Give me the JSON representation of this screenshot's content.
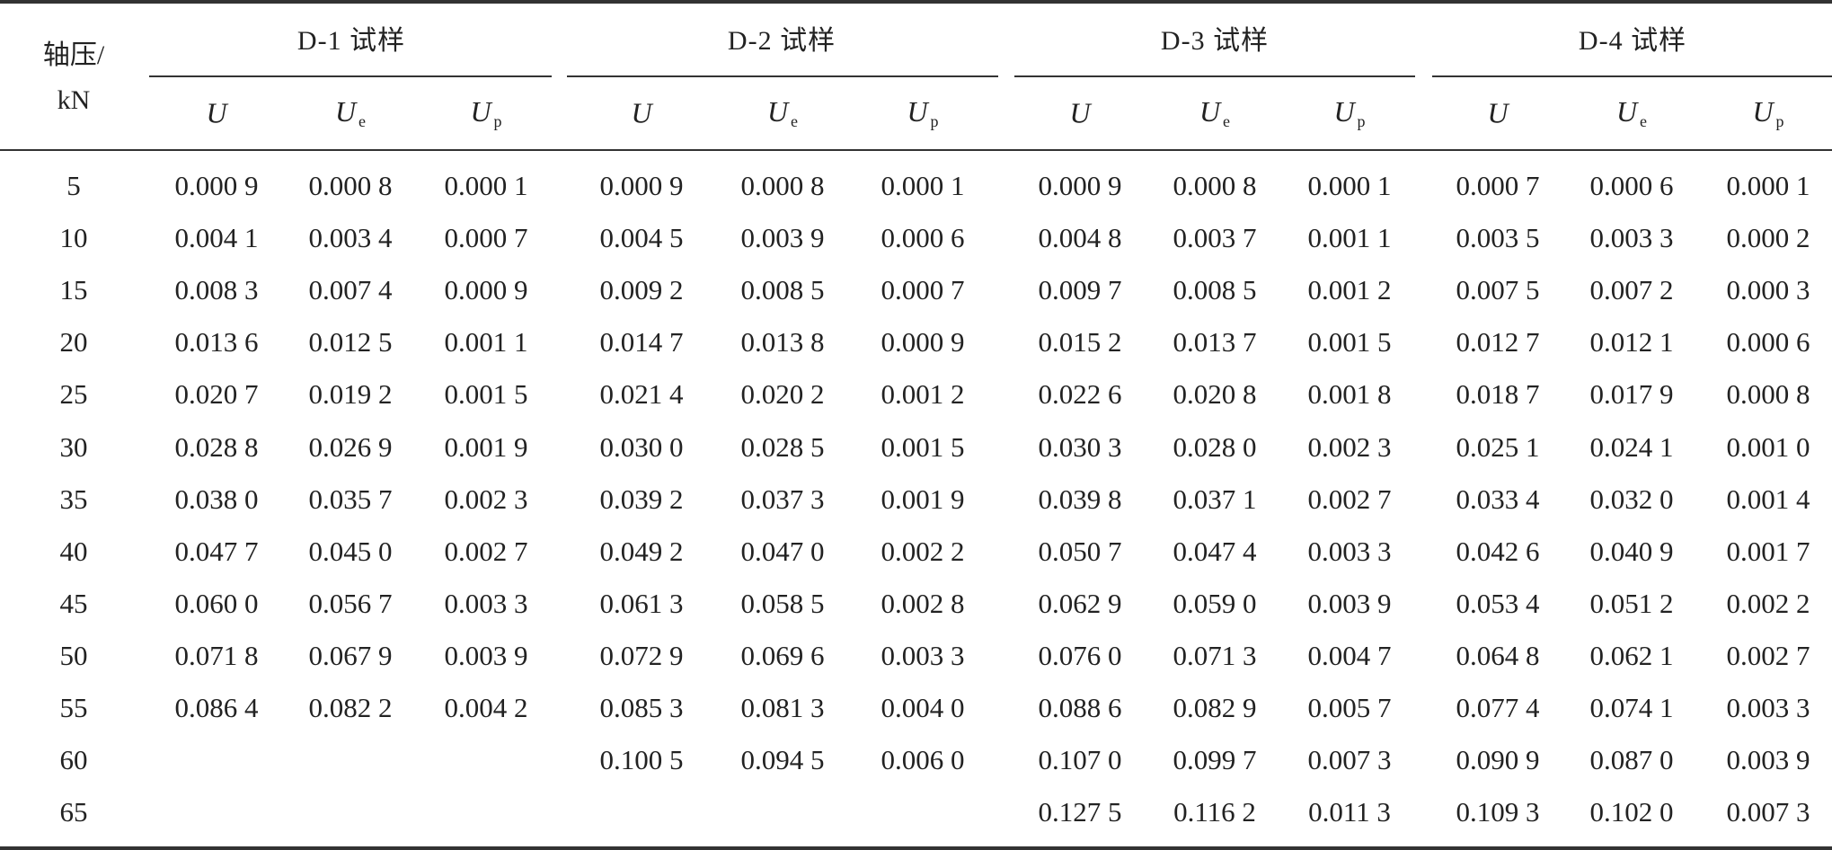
{
  "table": {
    "axial_header_line1": "轴压/",
    "axial_header_line2": "kN",
    "groups": [
      {
        "title": "D-1 试样"
      },
      {
        "title": "D-2 试样"
      },
      {
        "title": "D-3 试样"
      },
      {
        "title": "D-4 试样"
      }
    ],
    "sub_headers": [
      {
        "main": "U",
        "sub": ""
      },
      {
        "main": "U",
        "sub": "e"
      },
      {
        "main": "U",
        "sub": "p"
      }
    ],
    "rows": [
      {
        "load": "5",
        "values": [
          "0.000 9",
          "0.000 8",
          "0.000 1",
          "0.000 9",
          "0.000 8",
          "0.000 1",
          "0.000 9",
          "0.000 8",
          "0.000 1",
          "0.000 7",
          "0.000 6",
          "0.000 1"
        ]
      },
      {
        "load": "10",
        "values": [
          "0.004 1",
          "0.003 4",
          "0.000 7",
          "0.004 5",
          "0.003 9",
          "0.000 6",
          "0.004 8",
          "0.003 7",
          "0.001 1",
          "0.003 5",
          "0.003 3",
          "0.000 2"
        ]
      },
      {
        "load": "15",
        "values": [
          "0.008 3",
          "0.007 4",
          "0.000 9",
          "0.009 2",
          "0.008 5",
          "0.000 7",
          "0.009 7",
          "0.008 5",
          "0.001 2",
          "0.007 5",
          "0.007 2",
          "0.000 3"
        ]
      },
      {
        "load": "20",
        "values": [
          "0.013 6",
          "0.012 5",
          "0.001 1",
          "0.014 7",
          "0.013 8",
          "0.000 9",
          "0.015 2",
          "0.013 7",
          "0.001 5",
          "0.012 7",
          "0.012 1",
          "0.000 6"
        ]
      },
      {
        "load": "25",
        "values": [
          "0.020 7",
          "0.019 2",
          "0.001 5",
          "0.021 4",
          "0.020 2",
          "0.001 2",
          "0.022 6",
          "0.020 8",
          "0.001 8",
          "0.018 7",
          "0.017 9",
          "0.000 8"
        ]
      },
      {
        "load": "30",
        "values": [
          "0.028 8",
          "0.026 9",
          "0.001 9",
          "0.030 0",
          "0.028 5",
          "0.001 5",
          "0.030 3",
          "0.028 0",
          "0.002 3",
          "0.025 1",
          "0.024 1",
          "0.001 0"
        ]
      },
      {
        "load": "35",
        "values": [
          "0.038 0",
          "0.035 7",
          "0.002 3",
          "0.039 2",
          "0.037 3",
          "0.001 9",
          "0.039 8",
          "0.037 1",
          "0.002 7",
          "0.033 4",
          "0.032 0",
          "0.001 4"
        ]
      },
      {
        "load": "40",
        "values": [
          "0.047 7",
          "0.045 0",
          "0.002 7",
          "0.049 2",
          "0.047 0",
          "0.002 2",
          "0.050 7",
          "0.047 4",
          "0.003 3",
          "0.042 6",
          "0.040 9",
          "0.001 7"
        ]
      },
      {
        "load": "45",
        "values": [
          "0.060 0",
          "0.056 7",
          "0.003 3",
          "0.061 3",
          "0.058 5",
          "0.002 8",
          "0.062 9",
          "0.059 0",
          "0.003 9",
          "0.053 4",
          "0.051 2",
          "0.002 2"
        ]
      },
      {
        "load": "50",
        "values": [
          "0.071 8",
          "0.067 9",
          "0.003 9",
          "0.072 9",
          "0.069 6",
          "0.003 3",
          "0.076 0",
          "0.071 3",
          "0.004 7",
          "0.064 8",
          "0.062 1",
          "0.002 7"
        ]
      },
      {
        "load": "55",
        "values": [
          "0.086 4",
          "0.082 2",
          "0.004 2",
          "0.085 3",
          "0.081 3",
          "0.004 0",
          "0.088 6",
          "0.082 9",
          "0.005 7",
          "0.077 4",
          "0.074 1",
          "0.003 3"
        ]
      },
      {
        "load": "60",
        "values": [
          "",
          "",
          "",
          "0.100 5",
          "0.094 5",
          "0.006 0",
          "0.107 0",
          "0.099 7",
          "0.007 3",
          "0.090 9",
          "0.087 0",
          "0.003 9"
        ]
      },
      {
        "load": "65",
        "values": [
          "",
          "",
          "",
          "",
          "",
          "",
          "0.127 5",
          "0.116 2",
          "0.011 3",
          "0.109 3",
          "0.102 0",
          "0.007 3"
        ]
      }
    ]
  }
}
